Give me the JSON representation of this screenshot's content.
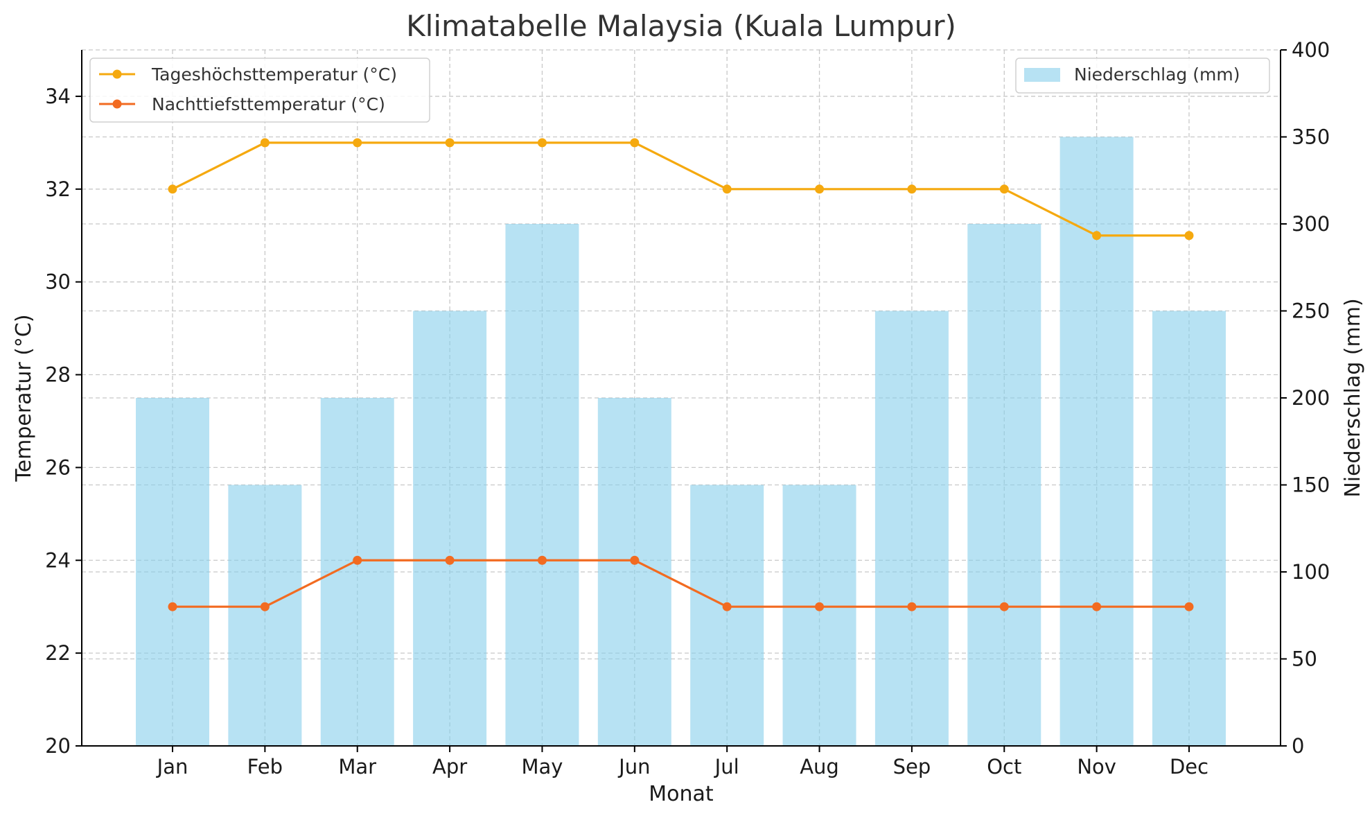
{
  "chart_data": {
    "type": "bar+line",
    "title": "Klimatabelle Malaysia (Kuala Lumpur)",
    "xlabel": "Monat",
    "ylabel_left": "Temperatur (°C)",
    "ylabel_right": "Niederschlag (mm)",
    "categories": [
      "Jan",
      "Feb",
      "Mar",
      "Apr",
      "May",
      "Jun",
      "Jul",
      "Aug",
      "Sep",
      "Oct",
      "Nov",
      "Dec"
    ],
    "y_left": {
      "min": 20,
      "max": 35,
      "ticks": [
        20,
        22,
        24,
        26,
        28,
        30,
        32,
        34
      ]
    },
    "y_right": {
      "min": 0,
      "max": 400,
      "ticks": [
        0,
        50,
        100,
        150,
        200,
        250,
        300,
        350,
        400
      ]
    },
    "grid": true,
    "series": [
      {
        "name": "Tageshöchsttemperatur (°C)",
        "kind": "line",
        "axis": "left",
        "color": "#F5A90F",
        "values": [
          32,
          33,
          33,
          33,
          33,
          33,
          32,
          32,
          32,
          32,
          31,
          31
        ]
      },
      {
        "name": "Nachttiefsttemperatur (°C)",
        "kind": "line",
        "axis": "left",
        "color": "#F26B21",
        "values": [
          23,
          23,
          24,
          24,
          24,
          24,
          23,
          23,
          23,
          23,
          23,
          23
        ]
      },
      {
        "name": "Niederschlag (mm)",
        "kind": "bar",
        "axis": "right",
        "color": "#87CEEB",
        "values": [
          200,
          150,
          200,
          250,
          300,
          200,
          150,
          150,
          250,
          300,
          350,
          250
        ]
      }
    ],
    "legends": {
      "lines": "top-left",
      "bars": "top-right"
    }
  }
}
